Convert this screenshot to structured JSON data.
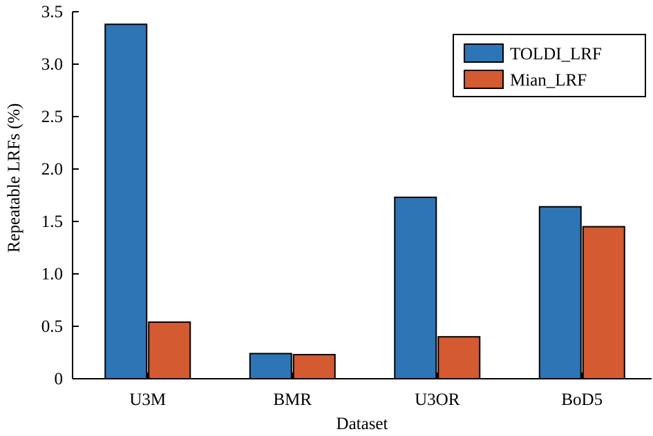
{
  "chart_data": {
    "type": "bar",
    "title": "",
    "xlabel": "Dataset",
    "ylabel": "Repeatable LRFs (%)",
    "categories": [
      "U3M",
      "BMR",
      "U3OR",
      "BoD5"
    ],
    "series": [
      {
        "name": "TOLDI_LRF",
        "color": "#2e75b6",
        "values": [
          3.38,
          0.24,
          1.73,
          1.64
        ]
      },
      {
        "name": "Mian_LRF",
        "color": "#d35a31",
        "values": [
          0.54,
          0.23,
          0.4,
          1.45
        ]
      }
    ],
    "ylim": [
      0,
      3.5
    ],
    "yticks": [
      0,
      0.5,
      1.0,
      1.5,
      2.0,
      2.5,
      3.0,
      3.5
    ],
    "ytick_labels": [
      "0",
      "0.5",
      "1.0",
      "1.5",
      "2.0",
      "2.5",
      "3.0",
      "3.5"
    ],
    "grid": false,
    "legend_position": "top-right"
  }
}
